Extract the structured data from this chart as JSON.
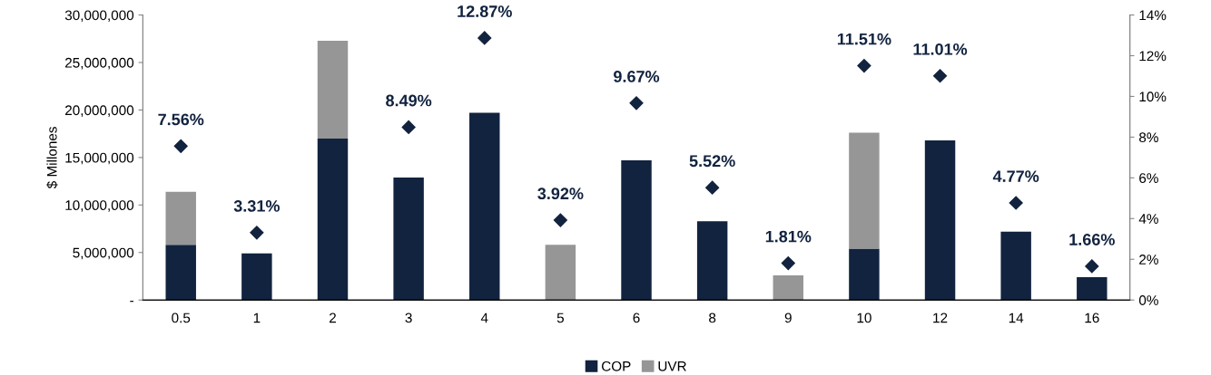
{
  "chart_data": {
    "type": "bar",
    "stacked": true,
    "ylabel": "$ Millones",
    "categories": [
      "0.5",
      "1",
      "2",
      "3",
      "4",
      "5",
      "6",
      "8",
      "9",
      "10",
      "12",
      "14",
      "16"
    ],
    "series": [
      {
        "name": "COP",
        "color": "#12233f",
        "values": [
          5800000,
          4900000,
          17000000,
          12900000,
          19700000,
          null,
          14700000,
          8300000,
          null,
          5400000,
          16800000,
          7200000,
          2400000
        ]
      },
      {
        "name": "UVR",
        "color": "#969696",
        "values": [
          5600000,
          null,
          10300000,
          null,
          null,
          5800000,
          null,
          null,
          2600000,
          12200000,
          null,
          null,
          null
        ]
      },
      {
        "type": "scatter",
        "axis": "y2",
        "color": "#12233f",
        "marker": "diamond",
        "values": [
          7.56,
          3.31,
          null,
          8.49,
          12.87,
          3.92,
          9.67,
          5.52,
          1.81,
          11.51,
          11.01,
          4.77,
          1.66
        ],
        "value_labels": [
          "7.56%",
          "3.31%",
          null,
          "8.49%",
          "12.87%",
          "3.92%",
          "9.67%",
          "5.52%",
          "1.81%",
          "11.51%",
          "11.01%",
          "4.77%",
          "1.66%"
        ]
      }
    ],
    "ylim": [
      0,
      30000000
    ],
    "yticks": [
      {
        "value": 0,
        "label": "-"
      },
      {
        "value": 5000000,
        "label": "5,000,000"
      },
      {
        "value": 10000000,
        "label": "10,000,000"
      },
      {
        "value": 15000000,
        "label": "15,000,000"
      },
      {
        "value": 20000000,
        "label": "20,000,000"
      },
      {
        "value": 25000000,
        "label": "25,000,000"
      },
      {
        "value": 30000000,
        "label": "30,000,000"
      }
    ],
    "y2lim": [
      0,
      14
    ],
    "y2ticks": [
      {
        "value": 0,
        "label": "0%"
      },
      {
        "value": 2,
        "label": "2%"
      },
      {
        "value": 4,
        "label": "4%"
      },
      {
        "value": 6,
        "label": "6%"
      },
      {
        "value": 8,
        "label": "8%"
      },
      {
        "value": 10,
        "label": "10%"
      },
      {
        "value": 12,
        "label": "12%"
      },
      {
        "value": 14,
        "label": "14%"
      }
    ],
    "legend": "bottom",
    "grid": false
  }
}
